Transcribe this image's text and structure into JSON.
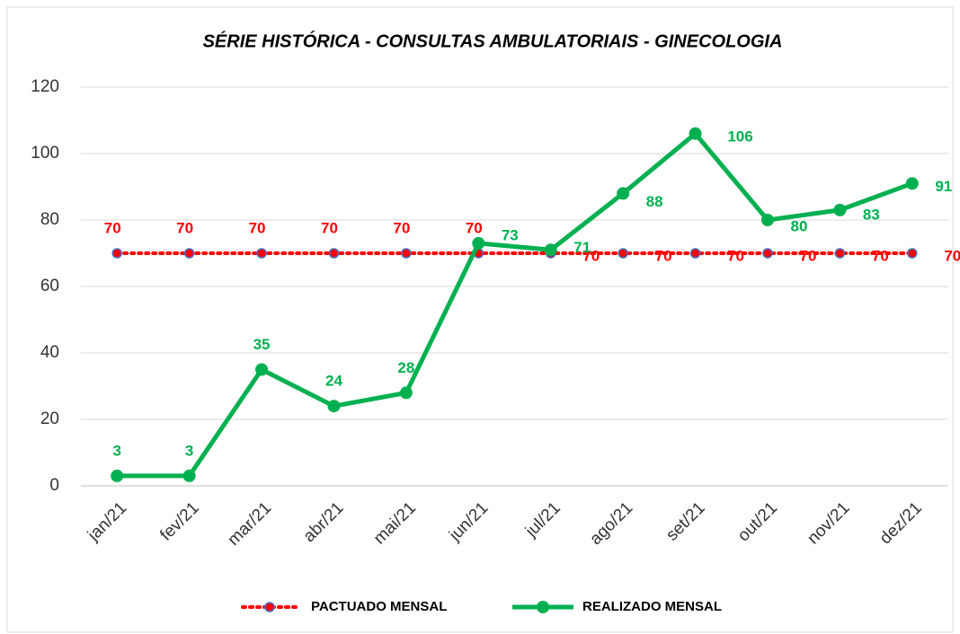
{
  "chart_data": {
    "type": "line",
    "title": "SÉRIE HISTÓRICA - CONSULTAS AMBULATORIAIS - GINECOLOGIA",
    "categories": [
      "jan/21",
      "fev/21",
      "mar/21",
      "abr/21",
      "mai/21",
      "jun/21",
      "jul/21",
      "ago/21",
      "set/21",
      "out/21",
      "nov/21",
      "dez/21"
    ],
    "series": [
      {
        "name": "PACTUADO MENSAL",
        "color": "#ff0000",
        "values": [
          70,
          70,
          70,
          70,
          70,
          70,
          70,
          70,
          70,
          70,
          70,
          70
        ]
      },
      {
        "name": "REALIZADO MENSAL",
        "color": "#00b050",
        "values": [
          3,
          3,
          35,
          24,
          28,
          73,
          71,
          88,
          106,
          80,
          83,
          91
        ]
      }
    ],
    "ylim": [
      0,
      120
    ],
    "yticks": [
      0,
      20,
      40,
      60,
      80,
      100,
      120
    ],
    "grid": true,
    "legend": "bottom"
  }
}
